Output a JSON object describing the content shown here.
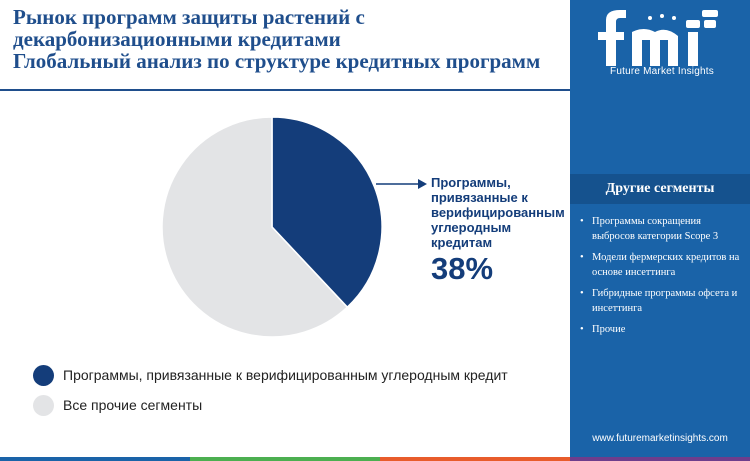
{
  "header": {
    "title_lines": [
      "Рынок программ защиты растений с",
      "декарбонизационными кредитами",
      "Глобальный анализ по структуре кредитных программ"
    ]
  },
  "chart_data": {
    "type": "pie",
    "slices": [
      {
        "label": "Программы, привязанные к верифицированным углеродным кредит",
        "value": 38,
        "color": "#143d7a"
      },
      {
        "label": "Все прочие сегменты",
        "value": 62,
        "color": "#e3e4e6"
      }
    ]
  },
  "callout": {
    "label_lines": [
      "Программы,",
      "привязанные к",
      "верифицированным",
      "углеродным",
      "кредитам"
    ],
    "value": "38%"
  },
  "legend": {
    "items": [
      {
        "label": "Программы, привязанные к верифицированным углеродным кредит",
        "color": "#143d7a"
      },
      {
        "label": "Все прочие сегменты",
        "color": "#e3e4e6"
      }
    ]
  },
  "sidebar": {
    "logo_text": "Future Market Insights",
    "title": "Другие сегменты",
    "items": [
      "Программы сокращения выбросов категории Scope 3",
      "Модели фермерских кредитов на основе инсеттинга",
      "Гибридные программы офсета и инсеттинга",
      "Прочие"
    ],
    "url": "www.futuremarketinsights.com"
  },
  "footer_colors": [
    "#1a63a8",
    "#4caf50",
    "#e85c2b",
    "#6e3d8c"
  ]
}
